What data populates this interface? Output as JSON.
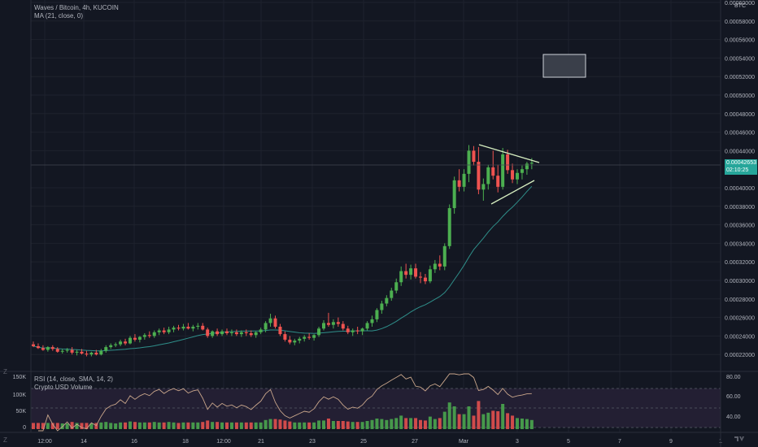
{
  "header": {
    "symbol_title": "Waves / Bitcoin, 4h, KUCOIN",
    "ma_label": "MA (21, close, 0)",
    "rsi_label": "RSI (14, close, SMA, 14, 2)",
    "volume_label": "Crypto.USD Volume",
    "currency": "BTC"
  },
  "price_axis": [
    "0.00060000",
    "0.00058000",
    "0.00056000",
    "0.00054000",
    "0.00052000",
    "0.00050000",
    "0.00048000",
    "0.00046000",
    "0.00044000",
    "0.00040000",
    "0.00038000",
    "0.00036000",
    "0.00034000",
    "0.00032000",
    "0.00030000",
    "0.00028000",
    "0.00026000",
    "0.00024000",
    "0.00022000"
  ],
  "price_tag": {
    "price": "0.00042653",
    "countdown": "02:10:25"
  },
  "rsi_axis": [
    "80.00",
    "60.00",
    "40.00"
  ],
  "volume_axis": [
    "150K",
    "100K",
    "50K",
    "0"
  ],
  "time_axis": [
    "12:00",
    "14",
    "16",
    "18",
    "12:00",
    "21",
    "23",
    "25",
    "27",
    "Mar",
    "3",
    "5",
    "7",
    "9",
    "1"
  ],
  "zoom_icon": "Z",
  "logo_icon": "tradingview-logo",
  "colors": {
    "background": "#131722",
    "up": "#4caf50",
    "down": "#ef5350",
    "ma": "#2f8f8a",
    "rsi": "#c9a68b",
    "trend": "#d6eec0",
    "box": "#9ea4ad",
    "grid": "#1e222d"
  },
  "chart_data": [
    {
      "type": "candlestick",
      "title": "Waves / Bitcoin, 4h, KUCOIN",
      "ylim": [
        0.00021,
        0.0006
      ],
      "candles": [
        {
          "o": 0.000231,
          "h": 0.000234,
          "l": 0.000228,
          "c": 0.000229
        },
        {
          "o": 0.000229,
          "h": 0.000232,
          "l": 0.000226,
          "c": 0.000227
        },
        {
          "o": 0.000227,
          "h": 0.00023,
          "l": 0.000224,
          "c": 0.000225
        },
        {
          "o": 0.000225,
          "h": 0.000229,
          "l": 0.000223,
          "c": 0.000228
        },
        {
          "o": 0.000228,
          "h": 0.00023,
          "l": 0.000224,
          "c": 0.000226
        },
        {
          "o": 0.000226,
          "h": 0.000228,
          "l": 0.000222,
          "c": 0.000223
        },
        {
          "o": 0.000223,
          "h": 0.000226,
          "l": 0.000221,
          "c": 0.000224
        },
        {
          "o": 0.000224,
          "h": 0.000227,
          "l": 0.000222,
          "c": 0.000225
        },
        {
          "o": 0.000225,
          "h": 0.000228,
          "l": 0.00022,
          "c": 0.000222
        },
        {
          "o": 0.000222,
          "h": 0.000225,
          "l": 0.000219,
          "c": 0.000223
        },
        {
          "o": 0.000223,
          "h": 0.000226,
          "l": 0.00022,
          "c": 0.000221
        },
        {
          "o": 0.000221,
          "h": 0.000224,
          "l": 0.000218,
          "c": 0.00022
        },
        {
          "o": 0.00022,
          "h": 0.000223,
          "l": 0.000218,
          "c": 0.000222
        },
        {
          "o": 0.000222,
          "h": 0.000225,
          "l": 0.000219,
          "c": 0.00022
        },
        {
          "o": 0.00022,
          "h": 0.000226,
          "l": 0.000219,
          "c": 0.000224
        },
        {
          "o": 0.000224,
          "h": 0.00023,
          "l": 0.000222,
          "c": 0.000228
        },
        {
          "o": 0.000228,
          "h": 0.000232,
          "l": 0.000226,
          "c": 0.00023
        },
        {
          "o": 0.00023,
          "h": 0.000233,
          "l": 0.000228,
          "c": 0.000231
        },
        {
          "o": 0.000231,
          "h": 0.000236,
          "l": 0.000229,
          "c": 0.000234
        },
        {
          "o": 0.000234,
          "h": 0.000237,
          "l": 0.00023,
          "c": 0.000232
        },
        {
          "o": 0.000232,
          "h": 0.00024,
          "l": 0.000231,
          "c": 0.000238
        },
        {
          "o": 0.000238,
          "h": 0.000242,
          "l": 0.000234,
          "c": 0.000236
        },
        {
          "o": 0.000236,
          "h": 0.00024,
          "l": 0.000233,
          "c": 0.000239
        },
        {
          "o": 0.000239,
          "h": 0.000243,
          "l": 0.000236,
          "c": 0.000241
        },
        {
          "o": 0.000241,
          "h": 0.000245,
          "l": 0.000238,
          "c": 0.00024
        },
        {
          "o": 0.00024,
          "h": 0.000246,
          "l": 0.000238,
          "c": 0.000244
        },
        {
          "o": 0.000244,
          "h": 0.000248,
          "l": 0.000241,
          "c": 0.000246
        },
        {
          "o": 0.000246,
          "h": 0.000249,
          "l": 0.000242,
          "c": 0.000244
        },
        {
          "o": 0.000244,
          "h": 0.00025,
          "l": 0.000242,
          "c": 0.000247
        },
        {
          "o": 0.000247,
          "h": 0.000251,
          "l": 0.000244,
          "c": 0.000249
        },
        {
          "o": 0.000249,
          "h": 0.000252,
          "l": 0.000246,
          "c": 0.000248
        },
        {
          "o": 0.000248,
          "h": 0.000253,
          "l": 0.000246,
          "c": 0.00025
        },
        {
          "o": 0.00025,
          "h": 0.000254,
          "l": 0.000247,
          "c": 0.000248
        },
        {
          "o": 0.000248,
          "h": 0.000252,
          "l": 0.000245,
          "c": 0.00025
        },
        {
          "o": 0.00025,
          "h": 0.000254,
          "l": 0.000247,
          "c": 0.000251
        },
        {
          "o": 0.000251,
          "h": 0.000254,
          "l": 0.000246,
          "c": 0.000247
        },
        {
          "o": 0.000247,
          "h": 0.000249,
          "l": 0.000238,
          "c": 0.00024
        },
        {
          "o": 0.00024,
          "h": 0.000246,
          "l": 0.000238,
          "c": 0.000245
        },
        {
          "o": 0.000245,
          "h": 0.000248,
          "l": 0.00024,
          "c": 0.000242
        },
        {
          "o": 0.000242,
          "h": 0.000247,
          "l": 0.00024,
          "c": 0.000245
        },
        {
          "o": 0.000245,
          "h": 0.000248,
          "l": 0.000241,
          "c": 0.000243
        },
        {
          "o": 0.000243,
          "h": 0.000247,
          "l": 0.00024,
          "c": 0.000244
        },
        {
          "o": 0.000244,
          "h": 0.000247,
          "l": 0.00024,
          "c": 0.000242
        },
        {
          "o": 0.000242,
          "h": 0.000246,
          "l": 0.000239,
          "c": 0.000244
        },
        {
          "o": 0.000244,
          "h": 0.000247,
          "l": 0.00024,
          "c": 0.000243
        },
        {
          "o": 0.000243,
          "h": 0.000246,
          "l": 0.000239,
          "c": 0.000241
        },
        {
          "o": 0.000241,
          "h": 0.000245,
          "l": 0.000238,
          "c": 0.000244
        },
        {
          "o": 0.000244,
          "h": 0.000249,
          "l": 0.000242,
          "c": 0.000247
        },
        {
          "o": 0.000247,
          "h": 0.000256,
          "l": 0.000244,
          "c": 0.000254
        },
        {
          "o": 0.000254,
          "h": 0.000264,
          "l": 0.00025,
          "c": 0.000259
        },
        {
          "o": 0.000259,
          "h": 0.000262,
          "l": 0.000248,
          "c": 0.00025
        },
        {
          "o": 0.00025,
          "h": 0.000253,
          "l": 0.00024,
          "c": 0.000242
        },
        {
          "o": 0.000242,
          "h": 0.000245,
          "l": 0.000234,
          "c": 0.000236
        },
        {
          "o": 0.000236,
          "h": 0.00024,
          "l": 0.000231,
          "c": 0.000233
        },
        {
          "o": 0.000233,
          "h": 0.000237,
          "l": 0.00023,
          "c": 0.000235
        },
        {
          "o": 0.000235,
          "h": 0.000239,
          "l": 0.000232,
          "c": 0.000237
        },
        {
          "o": 0.000237,
          "h": 0.000241,
          "l": 0.000234,
          "c": 0.000239
        },
        {
          "o": 0.000239,
          "h": 0.000243,
          "l": 0.000236,
          "c": 0.000238
        },
        {
          "o": 0.000238,
          "h": 0.000242,
          "l": 0.000235,
          "c": 0.000241
        },
        {
          "o": 0.000241,
          "h": 0.00025,
          "l": 0.000239,
          "c": 0.000248
        },
        {
          "o": 0.000248,
          "h": 0.000257,
          "l": 0.000246,
          "c": 0.000254
        },
        {
          "o": 0.000254,
          "h": 0.000265,
          "l": 0.00025,
          "c": 0.000252
        },
        {
          "o": 0.000252,
          "h": 0.000258,
          "l": 0.000248,
          "c": 0.000255
        },
        {
          "o": 0.000255,
          "h": 0.00026,
          "l": 0.00025,
          "c": 0.000253
        },
        {
          "o": 0.000253,
          "h": 0.000256,
          "l": 0.000246,
          "c": 0.000248
        },
        {
          "o": 0.000248,
          "h": 0.000251,
          "l": 0.000242,
          "c": 0.000244
        },
        {
          "o": 0.000244,
          "h": 0.000248,
          "l": 0.00024,
          "c": 0.000246
        },
        {
          "o": 0.000246,
          "h": 0.00025,
          "l": 0.000242,
          "c": 0.000245
        },
        {
          "o": 0.000245,
          "h": 0.000249,
          "l": 0.000241,
          "c": 0.000248
        },
        {
          "o": 0.000248,
          "h": 0.000256,
          "l": 0.000246,
          "c": 0.000254
        },
        {
          "o": 0.000254,
          "h": 0.000262,
          "l": 0.00025,
          "c": 0.000258
        },
        {
          "o": 0.000258,
          "h": 0.00027,
          "l": 0.000255,
          "c": 0.000268
        },
        {
          "o": 0.000268,
          "h": 0.000278,
          "l": 0.000264,
          "c": 0.000275
        },
        {
          "o": 0.000275,
          "h": 0.000284,
          "l": 0.000272,
          "c": 0.000281
        },
        {
          "o": 0.000281,
          "h": 0.000292,
          "l": 0.000278,
          "c": 0.000289
        },
        {
          "o": 0.000289,
          "h": 0.000302,
          "l": 0.000286,
          "c": 0.000298
        },
        {
          "o": 0.000298,
          "h": 0.000315,
          "l": 0.000294,
          "c": 0.00031
        },
        {
          "o": 0.00031,
          "h": 0.000318,
          "l": 0.000302,
          "c": 0.000306
        },
        {
          "o": 0.000306,
          "h": 0.000317,
          "l": 0.000301,
          "c": 0.000313
        },
        {
          "o": 0.000313,
          "h": 0.000318,
          "l": 0.000302,
          "c": 0.000304
        },
        {
          "o": 0.000304,
          "h": 0.000309,
          "l": 0.000297,
          "c": 0.000303
        },
        {
          "o": 0.000303,
          "h": 0.000307,
          "l": 0.000296,
          "c": 0.000299
        },
        {
          "o": 0.000299,
          "h": 0.000316,
          "l": 0.000297,
          "c": 0.000312
        },
        {
          "o": 0.000312,
          "h": 0.000322,
          "l": 0.000308,
          "c": 0.000318
        },
        {
          "o": 0.000318,
          "h": 0.000327,
          "l": 0.000311,
          "c": 0.000315
        },
        {
          "o": 0.000315,
          "h": 0.00034,
          "l": 0.000311,
          "c": 0.000337
        },
        {
          "o": 0.000337,
          "h": 0.000382,
          "l": 0.000334,
          "c": 0.000378
        },
        {
          "o": 0.000378,
          "h": 0.000412,
          "l": 0.000372,
          "c": 0.000408
        },
        {
          "o": 0.000408,
          "h": 0.00042,
          "l": 0.000396,
          "c": 0.000401
        },
        {
          "o": 0.000401,
          "h": 0.00042,
          "l": 0.000396,
          "c": 0.000415
        },
        {
          "o": 0.000415,
          "h": 0.000446,
          "l": 0.000406,
          "c": 0.00044
        },
        {
          "o": 0.00044,
          "h": 0.000445,
          "l": 0.000424,
          "c": 0.000428
        },
        {
          "o": 0.000428,
          "h": 0.000444,
          "l": 0.000393,
          "c": 0.000398
        },
        {
          "o": 0.000398,
          "h": 0.00041,
          "l": 0.000386,
          "c": 0.000404
        },
        {
          "o": 0.000404,
          "h": 0.000425,
          "l": 0.000398,
          "c": 0.000422
        },
        {
          "o": 0.000422,
          "h": 0.00044,
          "l": 0.000409,
          "c": 0.000413
        },
        {
          "o": 0.000413,
          "h": 0.000425,
          "l": 0.000395,
          "c": 0.000401
        },
        {
          "o": 0.000401,
          "h": 0.000443,
          "l": 0.000398,
          "c": 0.000436
        },
        {
          "o": 0.000436,
          "h": 0.000441,
          "l": 0.000415,
          "c": 0.000419
        },
        {
          "o": 0.000419,
          "h": 0.000426,
          "l": 0.000405,
          "c": 0.000409
        },
        {
          "o": 0.000409,
          "h": 0.00042,
          "l": 0.000404,
          "c": 0.000416
        },
        {
          "o": 0.000416,
          "h": 0.000424,
          "l": 0.000409,
          "c": 0.00042
        },
        {
          "o": 0.00042,
          "h": 0.000428,
          "l": 0.000414,
          "c": 0.000426
        },
        {
          "o": 0.000426,
          "h": 0.000432,
          "l": 0.00042,
          "c": 0.000427
        }
      ],
      "ma21": "computed from closes"
    }
  ]
}
